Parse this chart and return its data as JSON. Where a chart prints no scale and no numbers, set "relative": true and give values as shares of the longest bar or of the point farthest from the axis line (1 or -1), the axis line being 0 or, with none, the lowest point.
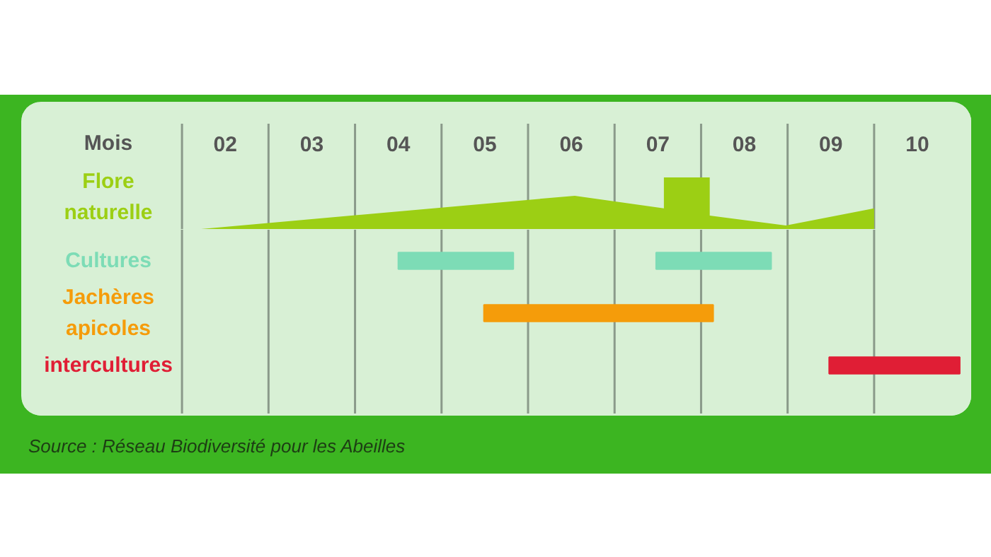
{
  "chart_data": [
    {
      "type": "area",
      "relative": true,
      "xlabel": "Mois",
      "ylabel": "Flore naturelle",
      "xlim": [
        0.15,
        11.13
      ],
      "xticks": [
        {
          "value": 2,
          "label": null
        },
        {
          "value": 2.5,
          "label": "02"
        },
        {
          "value": 3,
          "label": null
        },
        {
          "value": 3.5,
          "label": "03"
        },
        {
          "value": 4,
          "label": null
        },
        {
          "value": 4.5,
          "label": "04"
        },
        {
          "value": 5,
          "label": null
        },
        {
          "value": 5.5,
          "label": "05"
        },
        {
          "value": 6,
          "label": null
        },
        {
          "value": 6.5,
          "label": "06"
        },
        {
          "value": 7,
          "label": null
        },
        {
          "value": 7.5,
          "label": "07"
        },
        {
          "value": 8,
          "label": null
        },
        {
          "value": 8.5,
          "label": "08"
        },
        {
          "value": 9,
          "label": null
        },
        {
          "value": 9.5,
          "label": "09"
        },
        {
          "value": 10,
          "label": null
        },
        {
          "value": 10.5,
          "label": "10"
        }
      ],
      "grid": "x",
      "series": [
        {
          "color": "#9ccf14",
          "x": [
            2.13,
            6.54,
            7.57,
            7.57,
            8.1,
            8.1,
            8.98,
            10.0,
            10.0
          ],
          "values": [
            0,
            0.65,
            0.41,
            1,
            1,
            0.27,
            0.08,
            0.41,
            0
          ]
        }
      ]
    },
    {
      "type": "bar",
      "orientation": "horizontal",
      "tick_labels": "y",
      "categories": [
        "Cultures",
        "Jachères apicoles",
        "intercultures"
      ],
      "xlim": [
        0.15,
        11.13
      ],
      "xticks": [
        {
          "value": 2,
          "label": null
        },
        {
          "value": 3,
          "label": null
        },
        {
          "value": 4,
          "label": null
        },
        {
          "value": 5,
          "label": null
        },
        {
          "value": 6,
          "label": null
        },
        {
          "value": 7,
          "label": null
        },
        {
          "value": 8,
          "label": null
        },
        {
          "value": 9,
          "label": null
        },
        {
          "value": 10,
          "label": null
        }
      ],
      "grid": "x",
      "series": [
        {
          "colors": [
            "#7ddcb6",
            "#f59c0a",
            "#e01e35"
          ],
          "base": [
            4.5,
            5.49,
            9.48
          ],
          "values": [
            1.33,
            2.65,
            1.51
          ]
        },
        {
          "colors": [
            "#7ddcb6",
            null,
            null
          ],
          "base": [
            7.48,
            null,
            null
          ],
          "values": [
            1.33,
            null,
            null
          ]
        }
      ],
      "annotations": [
        "Source : Réseau Biodiversité pour les Abeilles"
      ]
    }
  ]
}
